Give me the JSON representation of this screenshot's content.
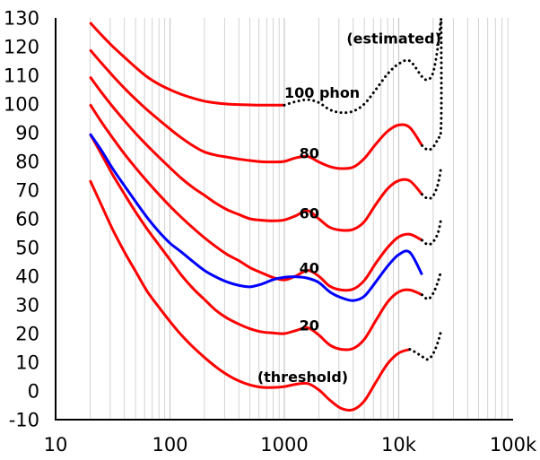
{
  "chart_data": {
    "type": "line",
    "title": "",
    "xlabel": "",
    "ylabel": "",
    "x_scale": "log",
    "xlim": [
      10,
      100000
    ],
    "ylim": [
      -10,
      130
    ],
    "grid": true,
    "x_tick_labels": [
      "10",
      "100",
      "1000",
      "10k",
      "100k"
    ],
    "x_tick_values": [
      10,
      100,
      1000,
      10000,
      100000
    ],
    "y_tick_values": [
      -10,
      0,
      10,
      20,
      30,
      40,
      50,
      60,
      70,
      80,
      90,
      100,
      110,
      120,
      130
    ],
    "y_tick_labels": [
      "-10",
      "0",
      "10",
      "20",
      "30",
      "40",
      "50",
      "60",
      "70",
      "80",
      "90",
      "100",
      "110",
      "120",
      "130"
    ],
    "annotations": [
      {
        "text": "(estimated)",
        "x": 3500,
        "y": 123
      },
      {
        "text": "100 phon",
        "x": 1000,
        "y": 104
      },
      {
        "text": "80",
        "x": 1350,
        "y": 83
      },
      {
        "text": "60",
        "x": 1350,
        "y": 62
      },
      {
        "text": "40",
        "x": 1350,
        "y": 43
      },
      {
        "text": "20",
        "x": 1350,
        "y": 23
      },
      {
        "text": "(threshold)",
        "x": 580,
        "y": 5
      }
    ],
    "colors": {
      "iso_curves": "#ff0000",
      "comparison_curve": "#0000ff",
      "estimated": "#000000",
      "axes": "#000000",
      "grid": "#c8c8c8"
    },
    "series": [
      {
        "color": "#ff0000",
        "style": "solid",
        "x": [
          20,
          25,
          31.5,
          40,
          50,
          63,
          80,
          100,
          125,
          160,
          200,
          250,
          315,
          400,
          500,
          630,
          800,
          1000,
          1250,
          1600,
          2000,
          2500,
          3150,
          4000,
          5000,
          6300,
          8000,
          10000,
          12500
        ],
        "y": [
          73.4,
          65.0,
          56.3,
          48.4,
          41.7,
          34.8,
          29.2,
          24.2,
          19.6,
          15.2,
          11.7,
          8.5,
          5.7,
          3.5,
          2.1,
          1.3,
          1.2,
          1.5,
          2.3,
          2.6,
          0.4,
          -3.2,
          -6.1,
          -6.5,
          -3.5,
          3.0,
          9.5,
          13.2,
          14.5
        ]
      },
      {
        "color": "#ff0000",
        "style": "solid",
        "x": [
          20,
          25,
          31.5,
          40,
          50,
          63,
          80,
          100,
          125,
          160,
          200,
          250,
          315,
          400,
          500,
          630,
          800,
          1000,
          1250,
          1600,
          2000,
          2500,
          3150,
          4000,
          5000,
          6300,
          8000,
          10000,
          12500,
          16000
        ],
        "y": [
          89.6,
          82.7,
          75.4,
          68.6,
          62.4,
          56.5,
          50.9,
          45.7,
          40.5,
          35.6,
          31.9,
          28.2,
          25.4,
          23.3,
          21.7,
          20.6,
          20.2,
          20.0,
          21.0,
          22.0,
          19.5,
          16.0,
          14.5,
          14.8,
          18.0,
          24.5,
          31.0,
          34.5,
          35.2,
          33.5
        ]
      },
      {
        "color": "#ff0000",
        "style": "solid",
        "x": [
          20,
          25,
          31.5,
          40,
          50,
          63,
          80,
          100,
          125,
          160,
          200,
          250,
          315,
          400,
          500,
          630,
          800,
          1000,
          1250,
          1600,
          2000,
          2500,
          3150,
          4000,
          5000,
          6300,
          8000,
          10000,
          12500,
          16000
        ],
        "y": [
          99.9,
          93.9,
          88.2,
          82.6,
          77.8,
          73.1,
          68.5,
          64.4,
          60.6,
          56.7,
          53.4,
          50.4,
          47.6,
          45.4,
          43.0,
          41.2,
          39.5,
          38.7,
          40.0,
          42.0,
          40.0,
          36.5,
          35.2,
          35.5,
          38.5,
          44.5,
          50.0,
          53.7,
          54.6,
          52.5
        ]
      },
      {
        "color": "#ff0000",
        "style": "solid",
        "x": [
          20,
          25,
          31.5,
          40,
          50,
          63,
          80,
          100,
          125,
          160,
          200,
          250,
          315,
          400,
          500,
          630,
          800,
          1000,
          1250,
          1600,
          2000,
          2500,
          3150,
          4000,
          5000,
          6300,
          8000,
          10000,
          12500,
          16000
        ],
        "y": [
          109.5,
          104.2,
          99.1,
          94.2,
          89.8,
          85.6,
          81.5,
          77.8,
          74.2,
          70.8,
          68.2,
          65.5,
          63.2,
          61.5,
          60.0,
          59.5,
          59.3,
          59.6,
          61.0,
          62.8,
          60.0,
          57.0,
          56.0,
          56.3,
          59.0,
          65.0,
          70.5,
          73.3,
          73.2,
          68.5
        ]
      },
      {
        "color": "#ff0000",
        "style": "solid",
        "x": [
          20,
          25,
          31.5,
          40,
          50,
          63,
          80,
          100,
          125,
          160,
          200,
          250,
          315,
          400,
          500,
          630,
          800,
          1000,
          1250,
          1600,
          2000,
          2500,
          3150,
          4000,
          5000,
          6300,
          8000,
          10000,
          12500,
          16000
        ],
        "y": [
          118.9,
          114.4,
          109.9,
          105.5,
          101.7,
          98.0,
          94.5,
          91.3,
          88.3,
          85.4,
          83.3,
          82.2,
          81.5,
          80.8,
          80.3,
          79.9,
          79.8,
          80.0,
          81.2,
          81.7,
          79.8,
          78.2,
          77.5,
          78.0,
          81.0,
          86.0,
          90.5,
          92.7,
          91.8,
          85.5
        ]
      },
      {
        "color": "#ff0000",
        "style": "solid",
        "x": [
          20,
          25,
          31.5,
          40,
          50,
          63,
          80,
          100,
          125,
          160,
          200,
          250,
          315,
          400,
          500,
          630,
          800,
          1000
        ],
        "y": [
          128.4,
          124.2,
          120.1,
          116.3,
          112.8,
          109.5,
          106.9,
          105.0,
          103.4,
          102.0,
          101.0,
          100.4,
          100.0,
          99.8,
          99.7,
          99.6,
          99.6,
          99.6
        ]
      },
      {
        "color": "#000000",
        "style": "dotted",
        "x": [
          1000,
          1250,
          1600,
          2000,
          2500,
          3150,
          4000,
          5000,
          6300,
          8000,
          10000,
          12500,
          16000,
          18000,
          20000,
          22000,
          23500
        ],
        "y": [
          99.6,
          100.8,
          101.5,
          100.5,
          98.0,
          97.0,
          97.5,
          100.0,
          105.0,
          110.5,
          114.0,
          115.0,
          109.5,
          108.5,
          111.0,
          120.0,
          130.0
        ]
      },
      {
        "color": "#000000",
        "style": "dotted",
        "x": [
          16000,
          18000,
          20000,
          22000,
          23500,
          23500
        ],
        "y": [
          85.5,
          84.0,
          85.0,
          88.0,
          93.0,
          130.0
        ]
      },
      {
        "color": "#000000",
        "style": "dotted",
        "x": [
          16000,
          18000,
          20000,
          22000,
          23500
        ],
        "y": [
          68.5,
          67.0,
          68.0,
          72.0,
          78.0
        ]
      },
      {
        "color": "#000000",
        "style": "dotted",
        "x": [
          16000,
          18000,
          20000,
          22000,
          23500
        ],
        "y": [
          52.5,
          51.0,
          52.0,
          55.0,
          60.0
        ]
      },
      {
        "color": "#000000",
        "style": "dotted",
        "x": [
          16000,
          18000,
          20000,
          22000,
          23500
        ],
        "y": [
          33.5,
          32.0,
          34.0,
          38.0,
          42.0
        ]
      },
      {
        "color": "#000000",
        "style": "dotted",
        "x": [
          12500,
          14000,
          16000,
          18000,
          20000,
          22000,
          23500
        ],
        "y": [
          14.5,
          13.5,
          12.0,
          11.0,
          13.0,
          17.0,
          21.0
        ]
      },
      {
        "color": "#0000ff",
        "style": "solid",
        "x": [
          20,
          25,
          31.5,
          40,
          50,
          63,
          80,
          100,
          125,
          160,
          200,
          250,
          315,
          400,
          500,
          630,
          800,
          1000,
          1250,
          1600,
          2000,
          2500,
          3150,
          4000,
          5000,
          6300,
          8000,
          10000,
          12500,
          16000
        ],
        "y": [
          89.6,
          84.0,
          77.5,
          71.5,
          66.0,
          60.5,
          55.5,
          51.5,
          48.5,
          45.0,
          42.0,
          39.8,
          38.0,
          36.8,
          36.3,
          37.2,
          38.8,
          39.6,
          39.8,
          39.3,
          37.8,
          34.5,
          32.5,
          31.5,
          33.0,
          38.0,
          43.5,
          47.5,
          48.3,
          40.5
        ]
      }
    ]
  }
}
